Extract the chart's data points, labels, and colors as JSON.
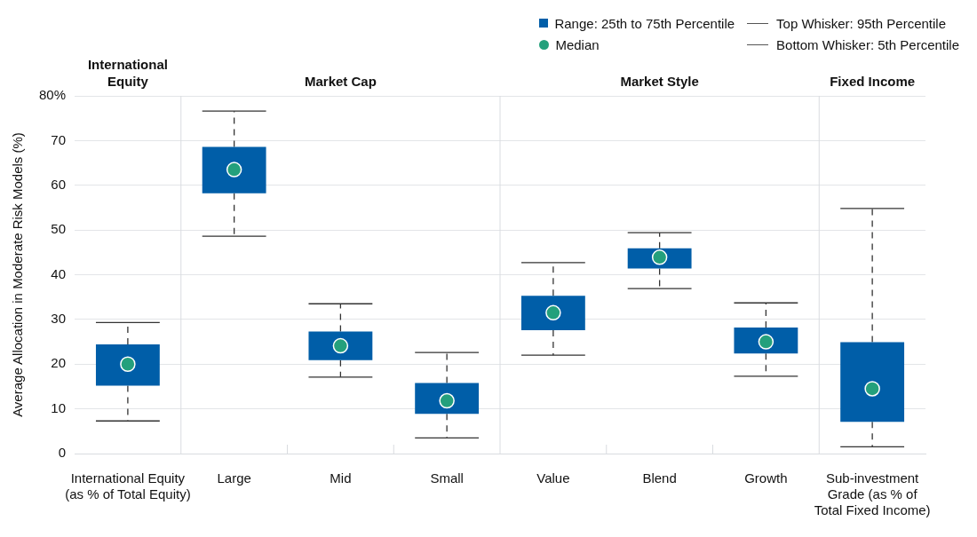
{
  "chart_data": {
    "type": "box",
    "ylabel": "Average Allocation in Moderate Risk Models (%)",
    "categories": [
      "International Equity\n(as % of Total Equity)",
      "Large",
      "Mid",
      "Small",
      "Value",
      "Blend",
      "Growth",
      "Sub-investment\nGrade (as % of\nTotal Fixed Income)"
    ],
    "series": [
      {
        "color": "#005ea8",
        "boxes": [
          {
            "low": 7.3,
            "q1": 15.2,
            "median": 20.0,
            "q3": 24.4,
            "high": 29.3
          },
          {
            "low": 48.6,
            "q1": 58.2,
            "median": 63.5,
            "q3": 68.6,
            "high": 76.6
          },
          {
            "low": 17.1,
            "q1": 20.9,
            "median": 24.1,
            "q3": 27.3,
            "high": 33.5
          },
          {
            "low": 3.5,
            "q1": 8.9,
            "median": 11.8,
            "q3": 15.8,
            "high": 22.6
          },
          {
            "low": 22.0,
            "q1": 27.6,
            "median": 31.5,
            "q3": 35.3,
            "high": 42.7
          },
          {
            "low": 36.9,
            "q1": 41.4,
            "median": 43.9,
            "q3": 45.9,
            "high": 49.4
          },
          {
            "low": 17.3,
            "q1": 22.4,
            "median": 25.0,
            "q3": 28.2,
            "high": 33.7
          },
          {
            "low": 1.5,
            "q1": 7.1,
            "median": 14.5,
            "q3": 24.9,
            "high": 54.8
          }
        ]
      }
    ],
    "ylim": [
      0,
      80
    ],
    "yticks": [
      0,
      10,
      20,
      30,
      40,
      50,
      60,
      70,
      {
        "value": 80,
        "label": "80%"
      }
    ],
    "grid": "y",
    "annotations": [
      "Range: 25th to 75th Percentile",
      "Median",
      "Top Whisker: 95th Percentile",
      "Bottom Whisker: 5th Percentile",
      "International\nEquity",
      "Market Cap",
      "Market Style",
      "Fixed Income"
    ]
  }
}
